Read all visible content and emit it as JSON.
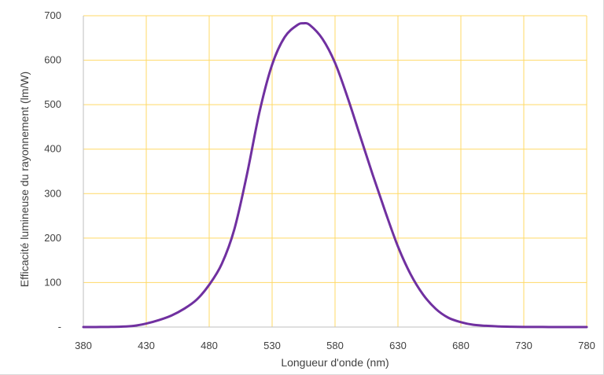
{
  "chart_data": {
    "type": "line",
    "title": "",
    "xlabel": "Longueur d'onde (nm)",
    "ylabel": "Efficacité lumineuse du rayonnement (lm/W)",
    "xlim": [
      380,
      780
    ],
    "ylim": [
      0,
      700
    ],
    "x_ticks": [
      380,
      430,
      480,
      530,
      580,
      630,
      680,
      730,
      780
    ],
    "y_ticks": [
      0,
      100,
      200,
      300,
      400,
      500,
      600,
      700
    ],
    "y_tick_labels": [
      "-",
      "100",
      "200",
      "300",
      "400",
      "500",
      "600",
      "700"
    ],
    "grid": true,
    "legend": "none",
    "colors": {
      "line": "#7030a0",
      "grid": "#ffd966",
      "axis": "#bfbfbf"
    },
    "series": [
      {
        "x": [
          380,
          390,
          400,
          410,
          420,
          430,
          440,
          450,
          460,
          470,
          480,
          490,
          500,
          510,
          520,
          530,
          540,
          550,
          555,
          560,
          570,
          580,
          590,
          600,
          610,
          620,
          630,
          640,
          650,
          660,
          670,
          680,
          690,
          700,
          710,
          720,
          730,
          740,
          750,
          760,
          770,
          780
        ],
        "values": [
          0,
          0.1,
          0.3,
          0.9,
          2.7,
          7.9,
          15.6,
          25.9,
          41,
          61.5,
          95,
          142,
          220,
          343,
          484,
          590,
          652,
          679,
          683,
          679,
          648,
          594,
          516,
          429,
          342,
          259,
          181,
          119,
          73,
          41,
          21,
          11,
          5,
          2.8,
          1.4,
          0.7,
          0.3,
          0.2,
          0.1,
          0.05,
          0.02,
          0
        ]
      }
    ]
  }
}
